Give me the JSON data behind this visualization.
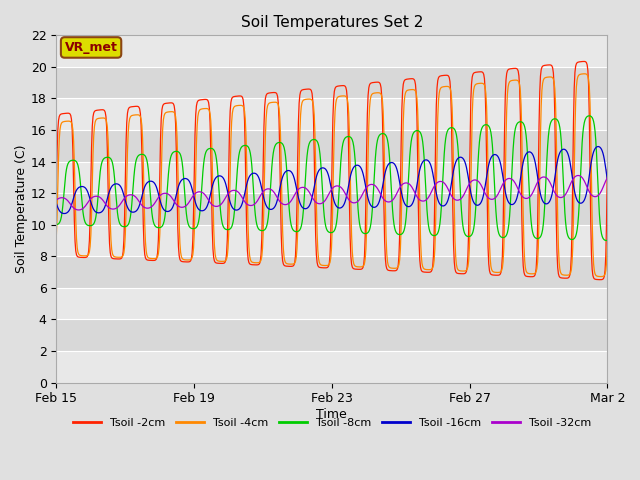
{
  "title": "Soil Temperatures Set 2",
  "xlabel": "Time",
  "ylabel": "Soil Temperature (C)",
  "ylim": [
    0,
    22
  ],
  "yticks": [
    0,
    2,
    4,
    6,
    8,
    10,
    12,
    14,
    16,
    18,
    20,
    22
  ],
  "bg_color": "#e0e0e0",
  "plot_bg_color": "#e8e8e8",
  "annotation_text": "VR_met",
  "annotation_bg": "#dddd00",
  "annotation_border": "#8b4513",
  "series": [
    {
      "label": "Tsoil -2cm",
      "color": "#ff2200"
    },
    {
      "label": "Tsoil -4cm",
      "color": "#ff8800"
    },
    {
      "label": "Tsoil -8cm",
      "color": "#00cc00"
    },
    {
      "label": "Tsoil -16cm",
      "color": "#0000cc"
    },
    {
      "label": "Tsoil -32cm",
      "color": "#aa00cc"
    }
  ],
  "xtick_labels": [
    "Feb 15",
    "Feb 19",
    "Feb 23",
    "Feb 27",
    "Mar 2"
  ],
  "n_days": 16,
  "samples_per_hour": 2
}
